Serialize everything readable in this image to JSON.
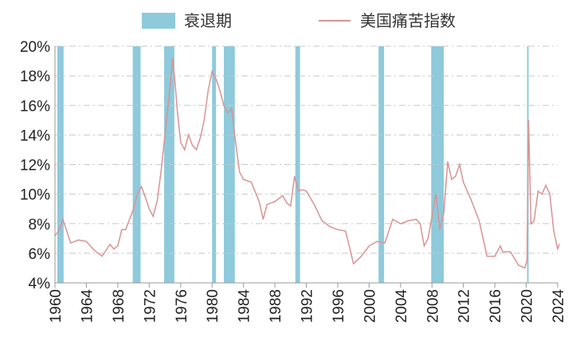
{
  "chart_data": {
    "type": "line",
    "title": "",
    "xlabel": "",
    "ylabel": "",
    "xlim": [
      1960,
      2024
    ],
    "ylim": [
      4,
      20
    ],
    "x_ticks": [
      "1960",
      "1964",
      "1968",
      "1972",
      "1976",
      "1980",
      "1984",
      "1988",
      "1992",
      "1996",
      "2000",
      "2004",
      "2008",
      "2012",
      "2016",
      "2020",
      "2024"
    ],
    "y_ticks": [
      "4%",
      "6%",
      "8%",
      "10%",
      "12%",
      "14%",
      "16%",
      "18%",
      "20%"
    ],
    "grid": "horizontal dash-dot",
    "legend_placement": "top",
    "legend": [
      {
        "label": "衰退期",
        "kind": "bar",
        "color": "#8ecadb"
      },
      {
        "label": "美国痛苦指数",
        "kind": "line",
        "color": "#d99393"
      }
    ],
    "recessions": [
      [
        1960.3,
        1961.1
      ],
      [
        1969.9,
        1970.9
      ],
      [
        1973.9,
        1975.2
      ],
      [
        1980.0,
        1980.5
      ],
      [
        1981.5,
        1982.9
      ],
      [
        1990.6,
        1991.2
      ],
      [
        2001.2,
        2001.9
      ],
      [
        2007.9,
        2009.5
      ],
      [
        2020.1,
        2020.3
      ]
    ],
    "series": [
      {
        "name": "美国痛苦指数",
        "x": [
          1960,
          1960.5,
          1961,
          1961.5,
          1962,
          1963,
          1964,
          1965,
          1966,
          1967,
          1967.5,
          1968,
          1968.5,
          1969,
          1969.5,
          1970,
          1970.5,
          1971,
          1971.5,
          1972,
          1972.5,
          1973,
          1973.5,
          1974,
          1974.5,
          1975,
          1975.3,
          1975.6,
          1976,
          1976.5,
          1977,
          1977.5,
          1978,
          1978.5,
          1979,
          1979.5,
          1980,
          1980.5,
          1981,
          1981.5,
          1982,
          1982.5,
          1983,
          1983.5,
          1984,
          1985,
          1986,
          1986.5,
          1987,
          1988,
          1989,
          1989.5,
          1990,
          1990.5,
          1991,
          1991.5,
          1992,
          1993,
          1994,
          1995,
          1996,
          1997,
          1998,
          1999,
          2000,
          2001,
          2002,
          2003,
          2004,
          2005,
          2006,
          2006.5,
          2007,
          2007.5,
          2008,
          2008.5,
          2009,
          2009.5,
          2010,
          2010.5,
          2011,
          2011.5,
          2012,
          2013,
          2014,
          2015,
          2016,
          2016.7,
          2017,
          2018,
          2019,
          2019.8,
          2020.1,
          2020.3,
          2020.6,
          2021,
          2021.5,
          2022,
          2022.5,
          2023,
          2023.5,
          2024,
          2024.2
        ],
        "values": [
          7.2,
          7.5,
          8.3,
          7.5,
          6.7,
          6.9,
          6.8,
          6.2,
          5.8,
          6.6,
          6.3,
          6.5,
          7.6,
          7.6,
          8.3,
          9.0,
          10.0,
          10.5,
          9.8,
          9.0,
          8.5,
          9.5,
          11.5,
          14.0,
          16.5,
          19.2,
          17.5,
          15.5,
          13.5,
          13.0,
          14.0,
          13.3,
          13.0,
          13.8,
          15.0,
          17.0,
          18.3,
          17.8,
          17.0,
          16.0,
          15.5,
          15.8,
          13.5,
          11.5,
          11.0,
          10.8,
          9.5,
          8.3,
          9.3,
          9.5,
          9.9,
          9.4,
          9.2,
          11.2,
          10.2,
          10.3,
          10.2,
          9.3,
          8.2,
          7.8,
          7.6,
          7.5,
          5.3,
          5.8,
          6.5,
          6.8,
          6.7,
          8.3,
          8.0,
          8.2,
          8.3,
          8.0,
          6.5,
          7.0,
          8.5,
          10.0,
          7.6,
          8.7,
          12.2,
          11.0,
          11.2,
          12.0,
          10.8,
          9.6,
          8.2,
          5.8,
          5.8,
          6.5,
          6.1,
          6.1,
          5.2,
          5.0,
          5.5,
          15.0,
          8.0,
          8.2,
          10.2,
          10.0,
          10.6,
          10.0,
          7.5,
          6.3,
          6.6
        ]
      }
    ]
  }
}
